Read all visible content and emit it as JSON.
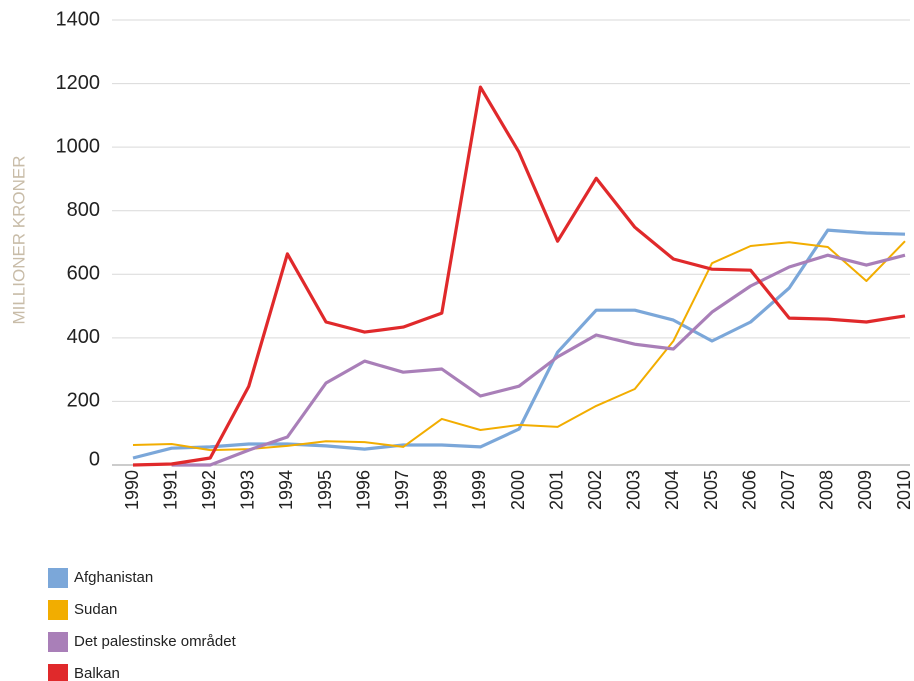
{
  "chart_data": {
    "type": "line",
    "y_label": "MILLIONER KRONER",
    "categories": [
      "1990",
      "1991",
      "1992",
      "1993",
      "1994",
      "1995",
      "1996",
      "1997",
      "1998",
      "1999",
      "2000",
      "2001",
      "2002",
      "2003",
      "2004",
      "2005",
      "2006",
      "2007",
      "2008",
      "2009",
      "2010"
    ],
    "series": [
      {
        "name": "Afghanistan",
        "color": "#7ba7d9",
        "values": [
          22,
          53,
          57,
          66,
          66,
          60,
          50,
          63,
          63,
          57,
          113,
          355,
          487,
          487,
          456,
          390,
          450,
          557,
          739,
          730,
          726
        ]
      },
      {
        "name": "Sudan",
        "color": "#f2ad00",
        "values": [
          63,
          66,
          47,
          50,
          60,
          75,
          72,
          57,
          145,
          110,
          126,
          120,
          186,
          239,
          390,
          635,
          689,
          701,
          686,
          579,
          704
        ]
      },
      {
        "name": "Det palestinske området",
        "color": "#a97fb8",
        "values": [
          null,
          0,
          0,
          47,
          88,
          258,
          327,
          292,
          302,
          217,
          248,
          340,
          409,
          380,
          365,
          481,
          563,
          623,
          660,
          629,
          660
        ]
      },
      {
        "name": "Balkan",
        "color": "#e0292b",
        "values": [
          0,
          3,
          22,
          248,
          664,
          450,
          418,
          434,
          478,
          1189,
          984,
          704,
          902,
          748,
          648,
          616,
          613,
          462,
          459,
          450,
          469
        ]
      }
    ],
    "ylim": [
      0,
      1400
    ],
    "yticks": [
      0,
      200,
      400,
      600,
      800,
      1000,
      1200,
      1400
    ],
    "grid": true
  }
}
